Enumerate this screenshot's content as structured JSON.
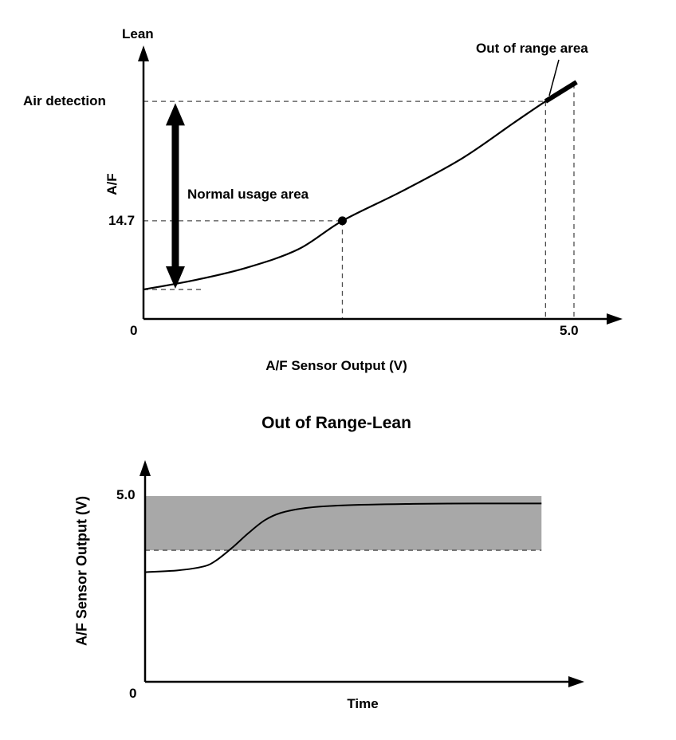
{
  "colors": {
    "line": "#000000",
    "dash": "#4d4d4d",
    "band": "#a8a8a8",
    "background": "#ffffff"
  },
  "charts": {
    "top": {
      "y_top_label": "Lean",
      "y_axis_label": "A/F",
      "x_axis_label": "A/F Sensor Output (V)",
      "origin_tick": "0",
      "full_scale_tick": "5.0",
      "air_detection_label": "Air detection",
      "stoich_value": "14.7",
      "normal_usage_label": "Normal usage area",
      "out_of_range_label": "Out of range area"
    },
    "bottom": {
      "title": "Out of Range-Lean",
      "y_axis_label": "A/F Sensor Output (V)",
      "x_axis_label": "Time",
      "full_scale_tick": "5.0",
      "origin_tick": "0"
    }
  },
  "chart_data": [
    {
      "type": "line",
      "title": "",
      "xlabel": "A/F Sensor Output (V)",
      "ylabel": "A/F",
      "y_direction_label": "Lean",
      "x_ticks": [
        "0",
        "5.0"
      ],
      "x_range_volts": [
        0,
        5.0
      ],
      "y_scale_note": "relative A/F level 0-100 (richer at bottom, leaner at top)",
      "annotations": [
        "Air detection",
        "Normal usage area",
        "Out of range area",
        "14.7"
      ],
      "series": [
        {
          "name": "sensor output",
          "x": [
            0,
            0.6,
            1.2,
            1.8,
            2.31,
            3.0,
            3.7,
            4.3,
            4.67,
            5.03
          ],
          "y": [
            11.2,
            14.8,
            19.5,
            26.5,
            37.3,
            48.5,
            61.0,
            74.5,
            82.7,
            90.0
          ]
        }
      ],
      "markers": {
        "stoich_point": {
          "x": 2.31,
          "y": 37.3,
          "label": "14.7"
        }
      },
      "guides": {
        "air_detection": {
          "y": 82.7,
          "x_at": 4.67
        },
        "full_scale": {
          "x": 5.0,
          "y_at": 89.4
        },
        "start": {
          "y": 11.2,
          "x_to": 0.67
        },
        "normal_usage_arrow": {
          "x": 0.37,
          "y_from": 11.5,
          "y_to": 82.0
        },
        "out_of_range_segment": {
          "x_from": 4.67,
          "x_to": 5.03,
          "y_from": 82.7,
          "y_to": 90.0
        }
      }
    },
    {
      "type": "line",
      "title": "Out of Range-Lean",
      "xlabel": "Time",
      "ylabel": "A/F Sensor Output (V)",
      "y_ticks": [
        "0",
        "5.0"
      ],
      "band": {
        "y_from": 3.54,
        "y_to": 5.0,
        "x_from": 0,
        "x_to": 9.6,
        "color": "#a8a8a8",
        "bottom_edge": "dashed"
      },
      "series": [
        {
          "name": "sensor output over time",
          "x": [
            0,
            0.8,
            1.4,
            1.7,
            2.1,
            2.5,
            2.9,
            3.3,
            3.9,
            4.8,
            6.5,
            8.0,
            9.6
          ],
          "y": [
            2.95,
            3.0,
            3.1,
            3.25,
            3.6,
            4.0,
            4.35,
            4.55,
            4.68,
            4.75,
            4.79,
            4.8,
            4.8
          ]
        }
      ]
    }
  ]
}
